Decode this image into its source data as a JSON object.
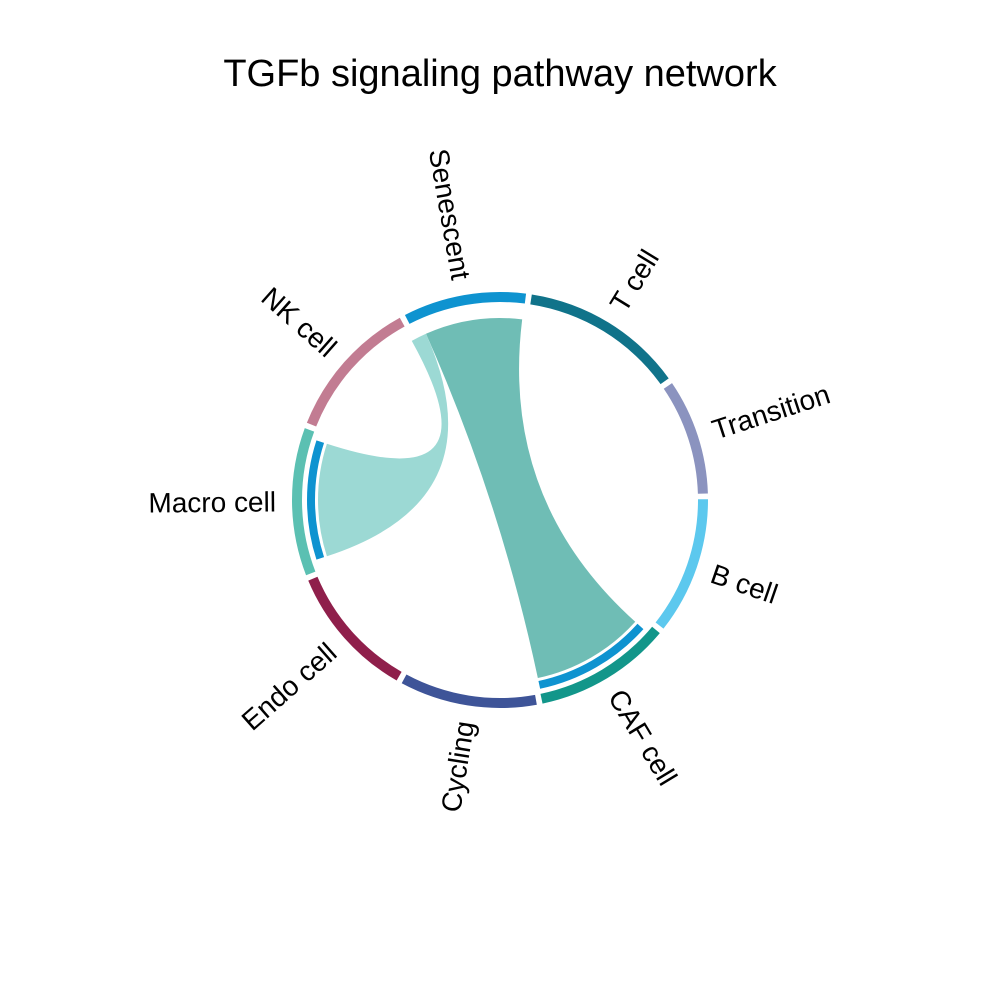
{
  "chart_data": {
    "type": "chord",
    "title": "TGFb signaling pathway network",
    "sectors": [
      {
        "name": "Senescent",
        "color": "#0E93D0"
      },
      {
        "name": "T cell",
        "color": "#10738A"
      },
      {
        "name": "Transition",
        "color": "#8B93BF"
      },
      {
        "name": "B cell",
        "color": "#5CC8EE"
      },
      {
        "name": "CAF cell",
        "color": "#12968A"
      },
      {
        "name": "Cycling",
        "color": "#3E5498"
      },
      {
        "name": "Endo cell",
        "color": "#8F1F4B"
      },
      {
        "name": "Macro cell",
        "color": "#5BC0B2"
      },
      {
        "name": "NK cell",
        "color": "#C27C92"
      }
    ],
    "links": [
      {
        "source": "Senescent",
        "target": "CAF cell",
        "color": "#6FBDB5"
      },
      {
        "source": "Senescent",
        "target": "Macro cell",
        "color": "#9CD9D4"
      }
    ]
  }
}
